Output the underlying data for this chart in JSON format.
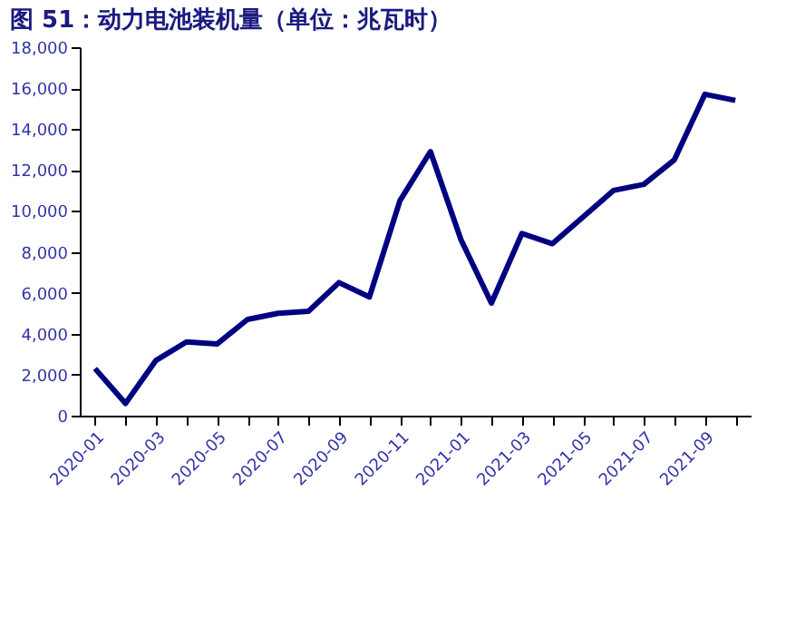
{
  "chart_data": {
    "type": "line",
    "title": "图 51：动力电池装机量（单位：兆瓦时）",
    "categories": [
      "2020-01",
      null,
      "2020-03",
      null,
      "2020-05",
      null,
      "2020-07",
      null,
      "2020-09",
      null,
      "2020-11",
      null,
      "2021-01",
      null,
      "2021-03",
      null,
      "2021-05",
      null,
      "2021-07",
      null,
      "2021-09",
      null
    ],
    "series": [
      {
        "color": "#000080",
        "values": [
          2300,
          600,
          2700,
          3600,
          3500,
          4700,
          5000,
          5100,
          6500,
          5800,
          10500,
          12900,
          8600,
          5500,
          8900,
          8400,
          9700,
          11000,
          11300,
          12500,
          15700,
          15400
        ]
      }
    ],
    "ylim": [
      0,
      18000
    ],
    "yticks": [
      {
        "value": 0,
        "label": "0"
      },
      {
        "value": 2000,
        "label": "2,000"
      },
      {
        "value": 4000,
        "label": "4,000"
      },
      {
        "value": 6000,
        "label": "6,000"
      },
      {
        "value": 8000,
        "label": "8,000"
      },
      {
        "value": 10000,
        "label": "10,000"
      },
      {
        "value": 12000,
        "label": "12,000"
      },
      {
        "value": 14000,
        "label": "14,000"
      },
      {
        "value": 16000,
        "label": "16,000"
      },
      {
        "value": 18000,
        "label": "18,000"
      }
    ],
    "grid": false,
    "marker": "none",
    "line_style": "solid"
  }
}
